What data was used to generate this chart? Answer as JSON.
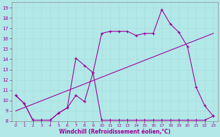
{
  "xlabel": "Windchill (Refroidissement éolien,°C)",
  "bg_color": "#b2e8e8",
  "line_color": "#990099",
  "grid_color": "#cceeee",
  "xlim": [
    -0.5,
    23.5
  ],
  "ylim": [
    8,
    19.5
  ],
  "yticks": [
    8,
    9,
    10,
    11,
    12,
    13,
    14,
    15,
    16,
    17,
    18,
    19
  ],
  "xticks": [
    0,
    1,
    2,
    3,
    4,
    5,
    6,
    7,
    8,
    9,
    10,
    11,
    12,
    13,
    14,
    15,
    16,
    17,
    18,
    19,
    20,
    21,
    22,
    23
  ],
  "line1_x": [
    0,
    1,
    2,
    3,
    4,
    5,
    6,
    7,
    8,
    9,
    10,
    11,
    12,
    13,
    14,
    15,
    16,
    17,
    18,
    19,
    20,
    21,
    22,
    23
  ],
  "line1_y": [
    10.5,
    9.7,
    8.1,
    8.1,
    8.1,
    8.8,
    9.3,
    10.5,
    9.9,
    12.7,
    16.5,
    16.7,
    16.7,
    16.7,
    16.3,
    16.5,
    16.5,
    18.8,
    17.4,
    16.6,
    15.2,
    11.3,
    9.5,
    8.5
  ],
  "line2_x": [
    0,
    1,
    2,
    3,
    4,
    5,
    6,
    7,
    8,
    9,
    10,
    11,
    12,
    13,
    14,
    15,
    16,
    17,
    18,
    19,
    20,
    21,
    22,
    23
  ],
  "line2_y": [
    10.5,
    9.7,
    8.1,
    8.1,
    8.1,
    8.8,
    9.3,
    14.1,
    13.4,
    12.7,
    8.1,
    8.1,
    8.1,
    8.1,
    8.1,
    8.1,
    8.1,
    8.1,
    8.1,
    8.1,
    8.1,
    8.1,
    8.1,
    8.5
  ],
  "line3_x": [
    0,
    23
  ],
  "line3_y": [
    9.0,
    16.5
  ]
}
